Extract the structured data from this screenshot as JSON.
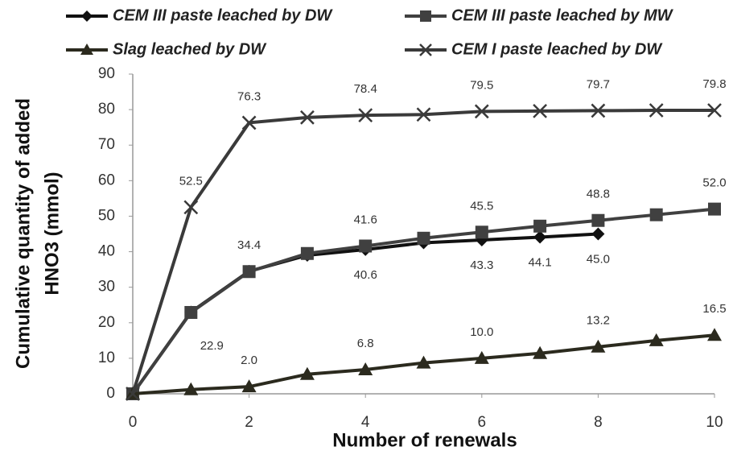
{
  "chart_data": {
    "type": "line",
    "x_label": "Number of renewals",
    "y_label": [
      "Cumulative quantity of added",
      "HNO3 (mmol)"
    ],
    "xlim": [
      0,
      10
    ],
    "xticks": [
      0,
      2,
      4,
      6,
      8,
      10
    ],
    "ylim": [
      0,
      90
    ],
    "yticks": [
      0,
      10,
      20,
      30,
      40,
      50,
      60,
      70,
      80,
      90
    ],
    "grid": false,
    "series": [
      {
        "name": "CEM III paste leached by DW",
        "color": "#111111",
        "marker": "diamond",
        "x": [
          0,
          1,
          2,
          3,
          4,
          5,
          6,
          7,
          8
        ],
        "values": [
          0,
          23,
          34.5,
          39,
          40.6,
          42.5,
          43.3,
          44.1,
          45.0
        ],
        "value_labels": [
          null,
          null,
          null,
          null,
          "40.6",
          null,
          "43.3",
          "44.1",
          "45.0"
        ]
      },
      {
        "name": "CEM III paste leached by MW",
        "color": "#404040",
        "marker": "square",
        "x": [
          0,
          1,
          2,
          3,
          4,
          5,
          6,
          7,
          8,
          9,
          10
        ],
        "values": [
          0,
          22.9,
          34.4,
          39.5,
          41.6,
          43.8,
          45.5,
          47.2,
          48.8,
          50.4,
          52.0
        ],
        "value_labels": [
          null,
          "22.9",
          "34.4",
          null,
          "41.6",
          null,
          "45.5",
          null,
          "48.8",
          null,
          "52.0"
        ]
      },
      {
        "name": "Slag leached by DW",
        "color": "#2b2a1e",
        "marker": "triangle",
        "x": [
          0,
          1,
          2,
          3,
          4,
          5,
          6,
          7,
          8,
          9,
          10
        ],
        "values": [
          0,
          1.2,
          2.0,
          5.5,
          6.8,
          8.7,
          10.0,
          11.4,
          13.2,
          15.0,
          16.5
        ],
        "value_labels": [
          null,
          null,
          "2.0",
          null,
          "6.8",
          null,
          "10.0",
          null,
          "13.2",
          null,
          "16.5"
        ]
      },
      {
        "name": "CEM I paste leached by DW",
        "color": "#3a3a3a",
        "marker": "x",
        "x": [
          0,
          1,
          2,
          3,
          4,
          5,
          6,
          7,
          8,
          9,
          10
        ],
        "values": [
          0,
          52.5,
          76.3,
          77.8,
          78.4,
          78.6,
          79.5,
          79.6,
          79.7,
          79.8,
          79.8
        ],
        "value_labels": [
          null,
          "52.5",
          "76.3",
          null,
          "78.4",
          null,
          "79.5",
          null,
          "79.7",
          null,
          "79.8"
        ]
      }
    ]
  }
}
